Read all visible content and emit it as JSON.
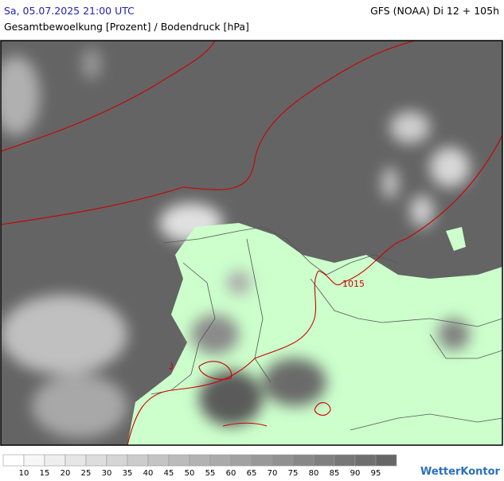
{
  "header": {
    "datetime": "Sa, 05.07.2025 21:00 UTC",
    "model": "GFS (NOAA) Di 12 + 105h",
    "subtitle": "Gesamtbewoelkung [Prozent] / Bodendruck [hPa]"
  },
  "map": {
    "isobar_label": "1015"
  },
  "legend": {
    "labels": [
      "10",
      "15",
      "20",
      "25",
      "30",
      "35",
      "40",
      "45",
      "50",
      "55",
      "60",
      "65",
      "70",
      "75",
      "80",
      "85",
      "90",
      "95"
    ],
    "colors": [
      "#ffffff",
      "#f7f7f7",
      "#eeeeee",
      "#e6e6e6",
      "#dddddd",
      "#d5d5d5",
      "#cccccc",
      "#c4c4c4",
      "#bbbbbb",
      "#b3b3b3",
      "#aaaaaa",
      "#a2a2a2",
      "#999999",
      "#919191",
      "#888888",
      "#808080",
      "#777777",
      "#6f6f6f",
      "#666666"
    ]
  },
  "brand": "WetterKontor"
}
